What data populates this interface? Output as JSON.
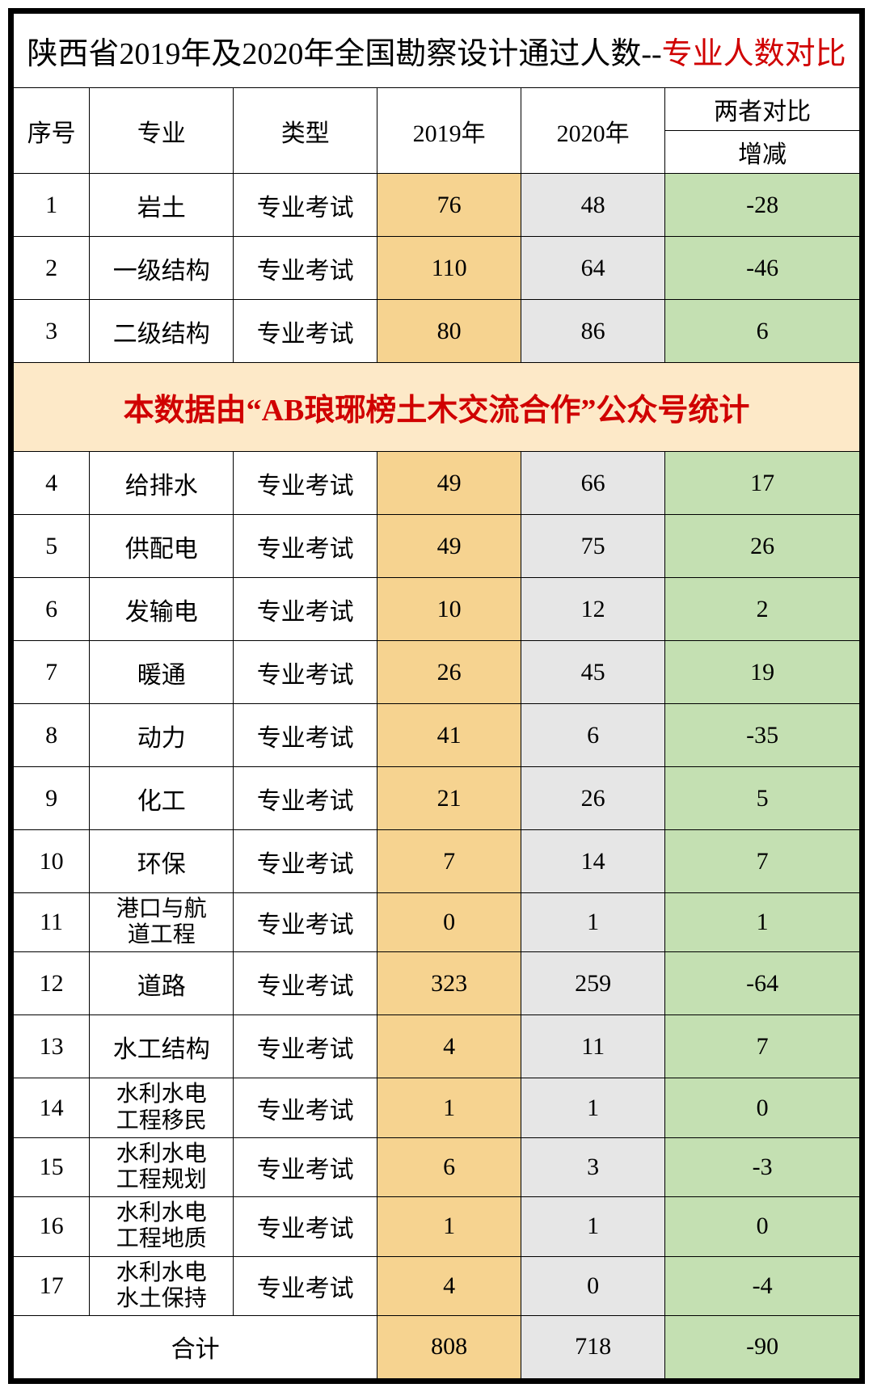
{
  "title_prefix": "陕西省2019年及2020年全国勘察设计通过人数--",
  "title_suffix": "专业人数对比",
  "headers": {
    "seq": "序号",
    "major": "专业",
    "type": "类型",
    "y2019": "2019年",
    "y2020": "2020年",
    "compare": "两者对比",
    "delta": "增减"
  },
  "banner": "本数据由“AB琅琊榜土木交流合作”公众号统计",
  "type_label": "专业考试",
  "rows_a": [
    {
      "seq": "1",
      "major": "岩土",
      "y2019": "76",
      "y2020": "48",
      "diff": "-28"
    },
    {
      "seq": "2",
      "major": "一级结构",
      "y2019": "110",
      "y2020": "64",
      "diff": "-46"
    },
    {
      "seq": "3",
      "major": "二级结构",
      "y2019": "80",
      "y2020": "86",
      "diff": "6"
    }
  ],
  "rows_b": [
    {
      "seq": "4",
      "major": "给排水",
      "y2019": "49",
      "y2020": "66",
      "diff": "17"
    },
    {
      "seq": "5",
      "major": "供配电",
      "y2019": "49",
      "y2020": "75",
      "diff": "26"
    },
    {
      "seq": "6",
      "major": "发输电",
      "y2019": "10",
      "y2020": "12",
      "diff": "2"
    },
    {
      "seq": "7",
      "major": "暖通",
      "y2019": "26",
      "y2020": "45",
      "diff": "19"
    },
    {
      "seq": "8",
      "major": "动力",
      "y2019": "41",
      "y2020": "6",
      "diff": "-35"
    },
    {
      "seq": "9",
      "major": "化工",
      "y2019": "21",
      "y2020": "26",
      "diff": "5"
    },
    {
      "seq": "10",
      "major": "环保",
      "y2019": "7",
      "y2020": "14",
      "diff": "7"
    },
    {
      "seq": "11",
      "major": "港口与航道工程",
      "y2019": "0",
      "y2020": "1",
      "diff": "1",
      "small": true
    },
    {
      "seq": "12",
      "major": "道路",
      "y2019": "323",
      "y2020": "259",
      "diff": "-64"
    },
    {
      "seq": "13",
      "major": "水工结构",
      "y2019": "4",
      "y2020": "11",
      "diff": "7"
    },
    {
      "seq": "14",
      "major": "水利水电工程移民",
      "y2019": "1",
      "y2020": "1",
      "diff": "0",
      "small": true
    },
    {
      "seq": "15",
      "major": "水利水电工程规划",
      "y2019": "6",
      "y2020": "3",
      "diff": "-3",
      "small": true
    },
    {
      "seq": "16",
      "major": "水利水电工程地质",
      "y2019": "1",
      "y2020": "1",
      "diff": "0",
      "small": true
    },
    {
      "seq": "17",
      "major": "水利水电水土保持",
      "y2019": "4",
      "y2020": "0",
      "diff": "-4",
      "small": true
    }
  ],
  "total": {
    "label": "合计",
    "y2019": "808",
    "y2020": "718",
    "diff": "-90"
  },
  "col_widths": [
    "9%",
    "17%",
    "17%",
    "17%",
    "17%",
    "23%"
  ],
  "colors": {
    "c2019": "#f6d390",
    "c2020": "#e6e6e6",
    "diff": "#c4e0b2",
    "banner_bg": "#fde9c8",
    "red": "#d00000"
  }
}
